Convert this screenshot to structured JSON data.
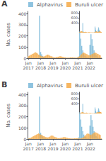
{
  "chart_data": [
    {
      "type": "bar",
      "title": "A",
      "ylabel": "No. cases",
      "categories": [
        "Jan\n2017",
        null,
        null,
        null,
        null,
        null,
        null,
        null,
        null,
        null,
        null,
        null,
        "Jan\n2018",
        null,
        null,
        null,
        null,
        null,
        null,
        null,
        null,
        null,
        null,
        null,
        "Jan\n2019",
        null,
        null,
        null,
        null,
        null,
        null,
        null,
        null,
        null,
        null,
        null,
        "Jan\n2020",
        null,
        null,
        null,
        null,
        null,
        null,
        null,
        null,
        null,
        null,
        null,
        "Jan\n2021",
        null,
        null,
        null,
        null,
        null,
        null,
        null,
        null,
        null,
        null,
        null,
        "Jan\n2022",
        null,
        null,
        null,
        null,
        null,
        null,
        null,
        null,
        null,
        null,
        null
      ],
      "series": [
        {
          "name": "Alphavirus",
          "color": "#7ab8d9",
          "values": [
            5,
            8,
            6,
            4,
            3,
            3,
            2,
            2,
            2,
            3,
            4,
            380,
            55,
            35,
            18,
            12,
            8,
            6,
            4,
            3,
            3,
            3,
            3,
            4,
            3,
            2,
            2,
            2,
            2,
            2,
            2,
            2,
            2,
            2,
            2,
            2,
            2,
            2,
            2,
            2,
            2,
            2,
            2,
            2,
            2,
            2,
            2,
            2,
            5,
            15,
            240,
            175,
            110,
            70,
            40,
            22,
            15,
            10,
            8,
            6,
            120,
            215,
            170,
            110,
            70,
            42,
            25,
            15,
            10,
            8,
            5,
            3
          ]
        },
        {
          "name": "Buruli ulcer",
          "color": "#f5a947",
          "values": [
            18,
            22,
            28,
            32,
            38,
            42,
            48,
            52,
            48,
            42,
            32,
            28,
            22,
            18,
            16,
            14,
            18,
            22,
            28,
            32,
            28,
            22,
            18,
            16,
            10,
            8,
            7,
            9,
            11,
            13,
            16,
            18,
            16,
            13,
            10,
            8,
            7,
            5,
            4,
            4,
            5,
            7,
            7,
            7,
            7,
            5,
            4,
            4,
            8,
            12,
            18,
            28,
            36,
            46,
            50,
            46,
            40,
            36,
            30,
            26,
            26,
            30,
            36,
            40,
            46,
            50,
            46,
            40,
            36,
            30,
            26,
            4
          ]
        }
      ],
      "ylim": [
        0,
        420
      ],
      "yticks": [
        0,
        100,
        200,
        300,
        400
      ],
      "grid": false,
      "legend": "upper right",
      "stacked": false
    },
    {
      "type": "bar",
      "categories": [
        "Jan\n2017",
        null,
        null,
        null,
        null,
        null,
        null,
        null,
        null,
        null,
        null,
        null,
        "Jan\n2018",
        null,
        null,
        null,
        null,
        null,
        null,
        null,
        null,
        null,
        null,
        null,
        "Jan\n2019",
        null,
        null,
        null,
        null,
        null,
        null,
        null,
        null,
        null,
        null,
        null,
        "Jan\n2020",
        null,
        null,
        null,
        null,
        null,
        null,
        null,
        null,
        null,
        null,
        null,
        "Jan\n2021",
        null,
        null,
        null,
        null,
        null,
        null,
        null,
        null,
        null,
        null,
        null,
        "Jan\n2022",
        null,
        null,
        null,
        null,
        null,
        null,
        null,
        null,
        null,
        null,
        null
      ],
      "series": [
        {
          "color": "#7ab8d9",
          "values": [
            5,
            8,
            6,
            4,
            3,
            3,
            2,
            2,
            2,
            3,
            4,
            380,
            55,
            35,
            18,
            12,
            8,
            6,
            4,
            3,
            3,
            3,
            3,
            4,
            3,
            2,
            2,
            2,
            2,
            2,
            2,
            2,
            2,
            2,
            2,
            2,
            2,
            2,
            2,
            2,
            2,
            2,
            2,
            2,
            2,
            2,
            2,
            2,
            5,
            15,
            240,
            175,
            110,
            70,
            40,
            22,
            15,
            10,
            8,
            6,
            120,
            215,
            170,
            110,
            70,
            42,
            25,
            15,
            10,
            8,
            5,
            3
          ]
        },
        {
          "color": "#f5a947",
          "values": [
            18,
            22,
            28,
            32,
            38,
            42,
            48,
            52,
            48,
            42,
            32,
            28,
            22,
            18,
            16,
            14,
            18,
            22,
            28,
            32,
            28,
            22,
            18,
            16,
            10,
            8,
            7,
            9,
            11,
            13,
            16,
            18,
            16,
            13,
            10,
            8,
            7,
            5,
            4,
            4,
            5,
            7,
            7,
            7,
            7,
            5,
            4,
            4,
            8,
            12,
            18,
            28,
            36,
            46,
            50,
            46,
            40,
            36,
            30,
            26,
            26,
            30,
            36,
            40,
            46,
            50,
            46,
            40,
            36,
            30,
            26,
            4
          ]
        }
      ],
      "ylim": [
        0,
        850
      ],
      "yticks": [
        400,
        600,
        800
      ],
      "grid": false,
      "tick_labels": "y",
      "stacked": false
    },
    {
      "type": "bar",
      "title": "B",
      "ylabel": "No. cases",
      "categories": [
        "Jan\n2017",
        null,
        null,
        null,
        null,
        null,
        null,
        null,
        null,
        null,
        null,
        null,
        "Jan\n2018",
        null,
        null,
        null,
        null,
        null,
        null,
        null,
        null,
        null,
        null,
        null,
        "Jan\n2019",
        null,
        null,
        null,
        null,
        null,
        null,
        null,
        null,
        null,
        null,
        null,
        "Jan\n2020",
        null,
        null,
        null,
        null,
        null,
        null,
        null,
        null,
        null,
        null,
        null,
        "Jan\n2021",
        null,
        null,
        null,
        null,
        null,
        null,
        null,
        null,
        null,
        null,
        null,
        "Jan\n2022",
        null,
        null,
        null,
        null,
        null,
        null,
        null,
        null,
        null,
        null,
        null
      ],
      "series": [
        {
          "name": "Alphavirus",
          "color": "#7ab8d9",
          "values": [
            5,
            8,
            6,
            4,
            3,
            3,
            2,
            2,
            2,
            3,
            4,
            380,
            55,
            35,
            18,
            12,
            8,
            6,
            4,
            3,
            3,
            3,
            3,
            4,
            3,
            2,
            2,
            2,
            2,
            2,
            2,
            2,
            2,
            2,
            2,
            2,
            2,
            2,
            2,
            2,
            2,
            2,
            2,
            2,
            2,
            2,
            2,
            2,
            5,
            15,
            240,
            175,
            110,
            70,
            40,
            22,
            15,
            10,
            8,
            6,
            120,
            215,
            170,
            110,
            70,
            42,
            25,
            15,
            10,
            8,
            5,
            3
          ]
        },
        {
          "name": "Buruli ulcer",
          "color": "#f5a947",
          "values": [
            4,
            6,
            10,
            15,
            20,
            25,
            30,
            35,
            40,
            45,
            50,
            45,
            40,
            36,
            30,
            26,
            22,
            18,
            16,
            14,
            18,
            22,
            28,
            32,
            28,
            22,
            18,
            16,
            10,
            8,
            7,
            9,
            11,
            13,
            16,
            18,
            16,
            13,
            10,
            8,
            7,
            5,
            4,
            4,
            5,
            7,
            7,
            7,
            7,
            5,
            4,
            4,
            8,
            12,
            18,
            28,
            36,
            46,
            50,
            46,
            40,
            36,
            42,
            50,
            58,
            62,
            58,
            54,
            48,
            42,
            36,
            4
          ]
        }
      ],
      "ylim": [
        0,
        420
      ],
      "yticks": [
        0,
        100,
        200,
        300,
        400
      ],
      "grid": false,
      "legend": "upper right",
      "stacked": false
    },
    {
      "type": "bar",
      "categories": [
        "Jan\n2017",
        null,
        null,
        null,
        null,
        null,
        null,
        null,
        null,
        null,
        null,
        null,
        "Jan\n2018",
        null,
        null,
        null,
        null,
        null,
        null,
        null,
        null,
        null,
        null,
        null,
        "Jan\n2019",
        null,
        null,
        null,
        null,
        null,
        null,
        null,
        null,
        null,
        null,
        null,
        "Jan\n2020",
        null,
        null,
        null,
        null,
        null,
        null,
        null,
        null,
        null,
        null,
        null,
        "Jan\n2021",
        null,
        null,
        null,
        null,
        null,
        null,
        null,
        null,
        null,
        null,
        null,
        "Jan\n2022",
        null,
        null,
        null,
        null,
        null,
        null,
        null,
        null,
        null,
        null,
        null
      ],
      "series": [
        {
          "color": "#7ab8d9",
          "values": [
            5,
            8,
            6,
            4,
            3,
            3,
            2,
            2,
            2,
            3,
            4,
            380,
            55,
            35,
            18,
            12,
            8,
            6,
            4,
            3,
            3,
            3,
            3,
            4,
            3,
            2,
            2,
            2,
            2,
            2,
            2,
            2,
            2,
            2,
            2,
            2,
            2,
            2,
            2,
            2,
            2,
            2,
            2,
            2,
            2,
            2,
            2,
            2,
            5,
            15,
            240,
            175,
            110,
            70,
            40,
            22,
            15,
            10,
            8,
            6,
            120,
            215,
            170,
            110,
            70,
            42,
            25,
            15,
            10,
            8,
            5,
            3
          ]
        },
        {
          "color": "#f5a947",
          "values": [
            4,
            6,
            10,
            15,
            20,
            25,
            30,
            35,
            40,
            45,
            50,
            45,
            40,
            36,
            30,
            26,
            22,
            18,
            16,
            14,
            18,
            22,
            28,
            32,
            28,
            22,
            18,
            16,
            10,
            8,
            7,
            9,
            11,
            13,
            16,
            18,
            16,
            13,
            10,
            8,
            7,
            5,
            4,
            4,
            5,
            7,
            7,
            7,
            7,
            5,
            4,
            4,
            8,
            12,
            18,
            28,
            36,
            46,
            50,
            46,
            40,
            36,
            42,
            50,
            58,
            62,
            58,
            54,
            48,
            42,
            36,
            4
          ]
        }
      ],
      "ylim": [
        0,
        850
      ],
      "yticks": [
        400,
        600,
        800
      ],
      "grid": false,
      "tick_labels": "y",
      "stacked": false
    }
  ]
}
